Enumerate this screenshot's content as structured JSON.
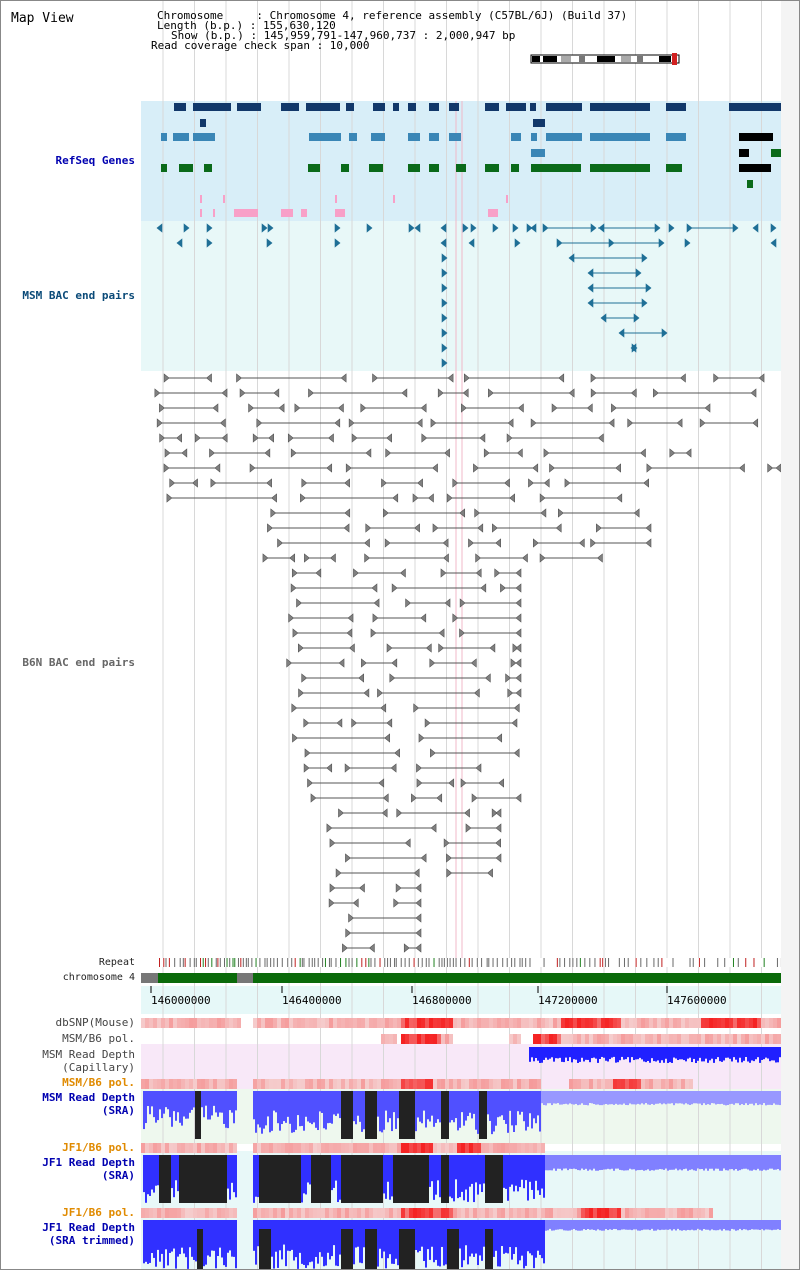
{
  "view_title": "Map View",
  "info": {
    "chromosome_line": "Chromosome     : Chromosome 4, reference assembly (C57BL/6J) (Build 37)",
    "length_line": "Length (b.p.) : 155,630,120",
    "show_line": "Show (b.p.) : 145,959,791-147,960,737 : 2,000,947 bp",
    "coverage_line": "Read coverage check span : 10,000"
  },
  "tracks": {
    "refseq": "RefSeq Genes",
    "msm_bac": "MSM BAC end pairs",
    "b6n_bac": "B6N BAC end pairs",
    "repeat": "Repeat",
    "chromosome": "chromosome 4",
    "dbsnp": "dbSNP(Mouse)",
    "msm_b6_pol_1": "MSM/B6 pol.",
    "msm_capillary_1": "MSM Read Depth",
    "msm_capillary_2": "(Capillary)",
    "msm_b6_pol_2": "MSM/B6 pol.",
    "msm_sra_1": "MSM Read Depth",
    "msm_sra_2": "(SRA)",
    "jf1_b6_pol_1": "JF1/B6 pol.",
    "jf1_sra_1": "JF1 Read Depth",
    "jf1_sra_2": "(SRA)",
    "jf1_b6_pol_2": "JF1/B6 pol.",
    "jf1_trim_1": "JF1 Read Depth",
    "jf1_trim_2": "(SRA trimmed)"
  },
  "axis_ticks": [
    "146000000",
    "146400000",
    "146800000",
    "147200000",
    "147600000"
  ],
  "colors": {
    "refseq_bg": "#d8eef8",
    "msm_bac_bg": "#e8f8f8",
    "gene_dark": "#12386a",
    "gene_mid": "#3a86b6",
    "gene_green": "#0a6a1a",
    "bac_blue": "#1f6f96",
    "bac_gray": "#808080",
    "chrom_green": "#0a6a0a",
    "depth_blue": "#2020ff",
    "pol_red": "#e02020"
  }
}
